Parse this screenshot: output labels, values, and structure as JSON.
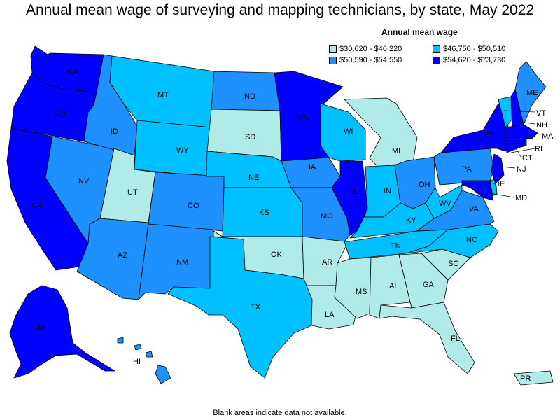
{
  "title": "Annual mean wage of surveying and mapping technicians, by state, May 2022",
  "legend": {
    "title": "Annual mean wage",
    "items": [
      {
        "label": "$30,620 - $46,220",
        "color": "#b0ebe8"
      },
      {
        "label": "$46,750 - $50,510",
        "color": "#00c0ff"
      },
      {
        "label": "$50,590 - $54,550",
        "color": "#1e90ff"
      },
      {
        "label": "$54,620 - $73,730",
        "color": "#0000ff"
      }
    ]
  },
  "footnote": "Blank areas indicate data not available.",
  "states": {
    "WA": {
      "label": "WA",
      "tier": 3
    },
    "OR": {
      "label": "OR",
      "tier": 3
    },
    "CA": {
      "label": "CA",
      "tier": 3
    },
    "NV": {
      "label": "NV",
      "tier": 2
    },
    "ID": {
      "label": "ID",
      "tier": 2
    },
    "MT": {
      "label": "MT",
      "tier": 1
    },
    "WY": {
      "label": "WY",
      "tier": 1
    },
    "UT": {
      "label": "UT",
      "tier": 0
    },
    "AZ": {
      "label": "AZ",
      "tier": 2
    },
    "CO": {
      "label": "CO",
      "tier": 2
    },
    "NM": {
      "label": "NM",
      "tier": 2
    },
    "ND": {
      "label": "ND",
      "tier": 2
    },
    "SD": {
      "label": "SD",
      "tier": 0
    },
    "NE": {
      "label": "NE",
      "tier": 1
    },
    "KS": {
      "label": "KS",
      "tier": 1
    },
    "OK": {
      "label": "OK",
      "tier": 0
    },
    "TX": {
      "label": "TX",
      "tier": 1
    },
    "MN": {
      "label": "MN",
      "tier": 3
    },
    "IA": {
      "label": "IA",
      "tier": 2
    },
    "MO": {
      "label": "MO",
      "tier": 2
    },
    "AR": {
      "label": "AR",
      "tier": 0
    },
    "LA": {
      "label": "LA",
      "tier": 0
    },
    "WI": {
      "label": "WI",
      "tier": 1
    },
    "IL": {
      "label": "IL",
      "tier": 3
    },
    "MI": {
      "label": "MI",
      "tier": 0
    },
    "IN": {
      "label": "IN",
      "tier": 1
    },
    "OH": {
      "label": "OH",
      "tier": 2
    },
    "KY": {
      "label": "KY",
      "tier": 1
    },
    "TN": {
      "label": "TN",
      "tier": 1
    },
    "MS": {
      "label": "MS",
      "tier": 0
    },
    "AL": {
      "label": "AL",
      "tier": 0
    },
    "GA": {
      "label": "GA",
      "tier": 0
    },
    "FL": {
      "label": "FL",
      "tier": 0
    },
    "SC": {
      "label": "SC",
      "tier": 0
    },
    "NC": {
      "label": "NC",
      "tier": 1
    },
    "VA": {
      "label": "VA",
      "tier": 2
    },
    "WV": {
      "label": "WV",
      "tier": 1
    },
    "PA": {
      "label": "PA",
      "tier": 2
    },
    "NY": {
      "label": "NY",
      "tier": 3
    },
    "VT": {
      "label": "VT",
      "tier": 1
    },
    "NH": {
      "label": "NH",
      "tier": 3
    },
    "ME": {
      "label": "ME",
      "tier": 2
    },
    "MA": {
      "label": "MA",
      "tier": 3
    },
    "RI": {
      "label": "RI",
      "tier": 3
    },
    "CT": {
      "label": "CT",
      "tier": 3
    },
    "NJ": {
      "label": "NJ",
      "tier": 3
    },
    "DE": {
      "label": "DE",
      "tier": 1
    },
    "MD": {
      "label": "MD",
      "tier": 3
    },
    "AK": {
      "label": "AK",
      "tier": 3
    },
    "HI": {
      "label": "HI",
      "tier": 2
    },
    "PR": {
      "label": "PR",
      "tier": 0
    }
  }
}
